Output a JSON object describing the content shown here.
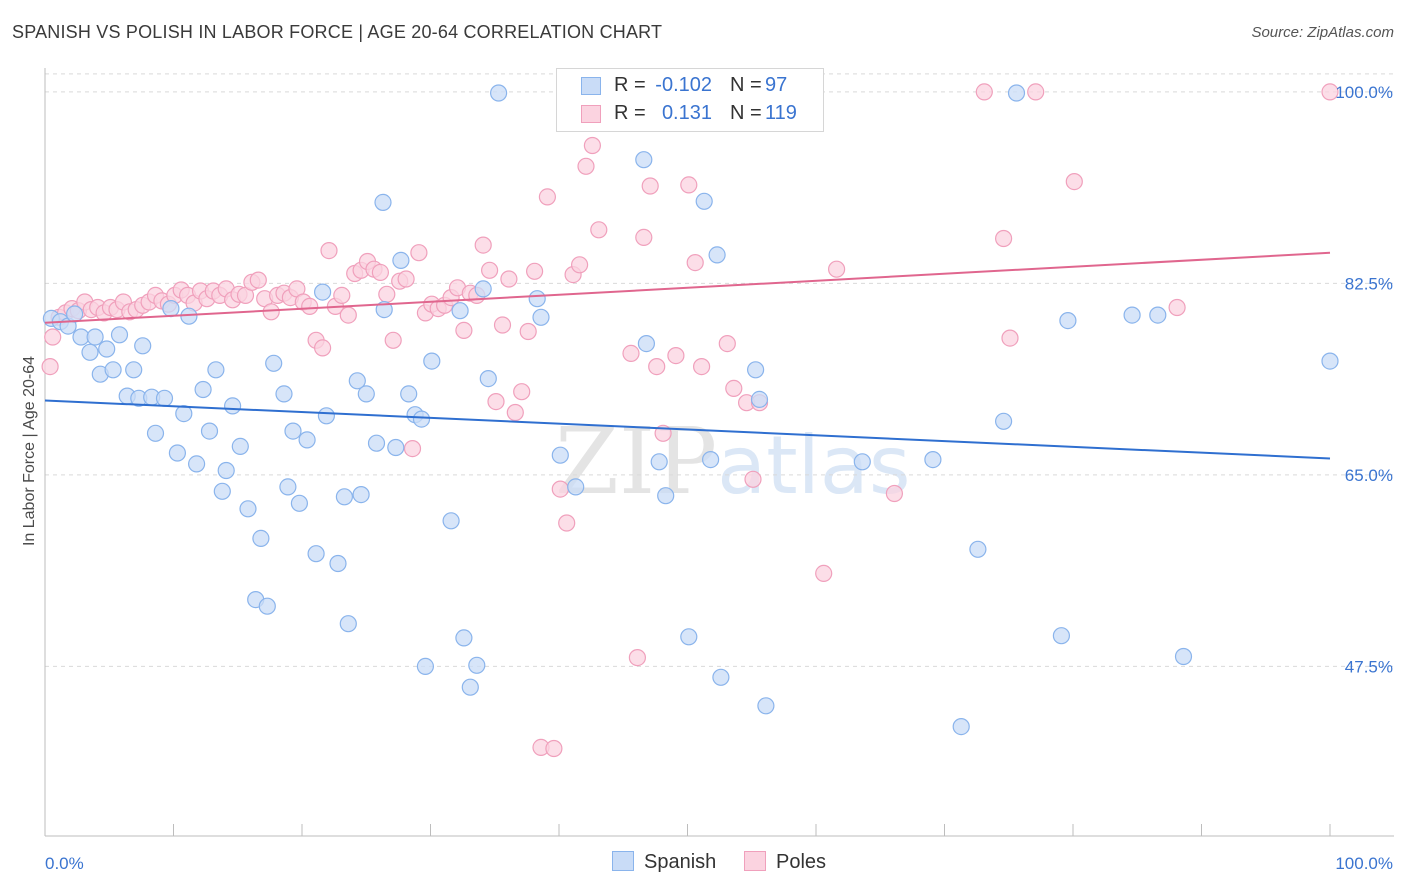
{
  "title": "SPANISH VS POLISH IN LABOR FORCE | AGE 20-64 CORRELATION CHART",
  "source": "Source: ZipAtlas.com",
  "watermark": {
    "part1": "ZIP",
    "part2": "atlas"
  },
  "legend": {
    "rows": [
      {
        "r_label": "R =",
        "r_value": "-0.102",
        "n_label": "N =",
        "n_value": "97",
        "color": "#8ab4ec",
        "fill": "#c9dcf7"
      },
      {
        "r_label": "R =",
        "r_value": "0.131",
        "n_label": "N =",
        "n_value": "119",
        "color": "#f0a0bc",
        "fill": "#fbd3e0"
      }
    ]
  },
  "bottom_legend": [
    {
      "label": "Spanish",
      "color": "#8ab4ec",
      "fill": "#c9dcf7"
    },
    {
      "label": "Poles",
      "color": "#f0a0bc",
      "fill": "#fbd3e0"
    }
  ],
  "chart_data": {
    "type": "scatter",
    "title": "SPANISH VS POLISH IN LABOR FORCE | AGE 20-64 CORRELATION CHART",
    "xlabel": "",
    "ylabel": "In Labor Force | Age 20-64",
    "xlim": [
      0,
      100
    ],
    "ylim": [
      32,
      102
    ],
    "x_tick_labels": [
      {
        "value": 0,
        "label": "0.0%"
      },
      {
        "value": 100,
        "label": "100.0%"
      }
    ],
    "y_tick_labels": [
      {
        "value": 100,
        "label": "100.0%"
      },
      {
        "value": 82.5,
        "label": "82.5%"
      },
      {
        "value": 65,
        "label": "65.0%"
      },
      {
        "value": 47.5,
        "label": "47.5%"
      }
    ],
    "grid": true,
    "series": [
      {
        "name": "Spanish",
        "color": "#8ab4ec",
        "fill": "#c9dcf7",
        "line_color": "#2f6fd0",
        "trend": [
          [
            0,
            71.8
          ],
          [
            100,
            66.5
          ]
        ],
        "points": [
          [
            0.5,
            79.3
          ],
          [
            1.2,
            79.0
          ],
          [
            1.8,
            78.6
          ],
          [
            2.3,
            79.7
          ],
          [
            2.8,
            77.6
          ],
          [
            3.5,
            76.2
          ],
          [
            3.9,
            77.6
          ],
          [
            4.3,
            74.2
          ],
          [
            4.8,
            76.5
          ],
          [
            5.3,
            74.6
          ],
          [
            5.8,
            77.8
          ],
          [
            6.4,
            72.2
          ],
          [
            6.9,
            74.6
          ],
          [
            7.3,
            72.0
          ],
          [
            7.6,
            76.8
          ],
          [
            8.3,
            72.1
          ],
          [
            8.6,
            68.8
          ],
          [
            9.3,
            72.0
          ],
          [
            9.8,
            80.2
          ],
          [
            10.3,
            67.0
          ],
          [
            10.8,
            70.6
          ],
          [
            11.2,
            79.5
          ],
          [
            11.8,
            66.0
          ],
          [
            12.3,
            72.8
          ],
          [
            12.8,
            69.0
          ],
          [
            13.3,
            74.6
          ],
          [
            13.8,
            63.5
          ],
          [
            14.1,
            65.4
          ],
          [
            14.6,
            71.3
          ],
          [
            15.2,
            67.6
          ],
          [
            15.8,
            61.9
          ],
          [
            16.8,
            59.2
          ],
          [
            16.4,
            53.6
          ],
          [
            17.3,
            53.0
          ],
          [
            17.8,
            75.2
          ],
          [
            18.6,
            72.4
          ],
          [
            18.9,
            63.9
          ],
          [
            19.3,
            69.0
          ],
          [
            19.8,
            62.4
          ],
          [
            20.4,
            68.2
          ],
          [
            21.1,
            57.8
          ],
          [
            21.6,
            81.7
          ],
          [
            21.9,
            70.4
          ],
          [
            22.8,
            56.9
          ],
          [
            23.3,
            63.0
          ],
          [
            23.6,
            51.4
          ],
          [
            24.3,
            73.6
          ],
          [
            24.6,
            63.2
          ],
          [
            25.0,
            72.4
          ],
          [
            25.8,
            67.9
          ],
          [
            26.4,
            80.1
          ],
          [
            26.3,
            89.9
          ],
          [
            27.3,
            67.5
          ],
          [
            27.7,
            84.6
          ],
          [
            28.3,
            72.4
          ],
          [
            28.8,
            70.5
          ],
          [
            29.3,
            70.1
          ],
          [
            29.6,
            47.5
          ],
          [
            30.1,
            75.4
          ],
          [
            31.6,
            60.8
          ],
          [
            32.3,
            80.0
          ],
          [
            32.6,
            50.1
          ],
          [
            33.1,
            45.6
          ],
          [
            33.6,
            47.6
          ],
          [
            34.1,
            82.0
          ],
          [
            34.5,
            73.8
          ],
          [
            35.3,
            99.9
          ],
          [
            38.3,
            81.1
          ],
          [
            38.6,
            79.4
          ],
          [
            40.1,
            66.8
          ],
          [
            41.3,
            63.9
          ],
          [
            46.6,
            93.8
          ],
          [
            46.8,
            77.0
          ],
          [
            47.8,
            66.2
          ],
          [
            48.3,
            63.1
          ],
          [
            50.1,
            50.2
          ],
          [
            51.3,
            90.0
          ],
          [
            51.8,
            66.4
          ],
          [
            52.3,
            85.1
          ],
          [
            52.6,
            46.5
          ],
          [
            55.3,
            74.6
          ],
          [
            55.6,
            71.9
          ],
          [
            56.1,
            43.9
          ],
          [
            63.6,
            66.2
          ],
          [
            69.1,
            66.4
          ],
          [
            71.3,
            42.0
          ],
          [
            72.6,
            58.2
          ],
          [
            74.6,
            69.9
          ],
          [
            75.6,
            99.9
          ],
          [
            79.1,
            50.3
          ],
          [
            79.6,
            79.1
          ],
          [
            84.6,
            79.6
          ],
          [
            86.6,
            79.6
          ],
          [
            88.6,
            48.4
          ],
          [
            100.0,
            75.4
          ]
        ]
      },
      {
        "name": "Poles",
        "color": "#f0a0bc",
        "fill": "#fbd3e0",
        "line_color": "#e0668e",
        "trend": [
          [
            0,
            78.9
          ],
          [
            100,
            85.3
          ]
        ],
        "points": [
          [
            0.4,
            74.9
          ],
          [
            0.6,
            77.6
          ],
          [
            1.1,
            79.4
          ],
          [
            1.6,
            79.8
          ],
          [
            2.1,
            80.2
          ],
          [
            2.6,
            80.0
          ],
          [
            3.1,
            80.8
          ],
          [
            3.6,
            80.1
          ],
          [
            4.1,
            80.3
          ],
          [
            4.6,
            79.8
          ],
          [
            5.1,
            80.3
          ],
          [
            5.6,
            80.1
          ],
          [
            6.1,
            80.8
          ],
          [
            6.6,
            79.9
          ],
          [
            7.1,
            80.1
          ],
          [
            7.6,
            80.5
          ],
          [
            8.1,
            80.8
          ],
          [
            8.6,
            81.4
          ],
          [
            9.1,
            80.9
          ],
          [
            9.6,
            80.6
          ],
          [
            10.1,
            81.4
          ],
          [
            10.6,
            81.9
          ],
          [
            11.1,
            81.4
          ],
          [
            11.6,
            80.7
          ],
          [
            12.1,
            81.8
          ],
          [
            12.6,
            81.1
          ],
          [
            13.1,
            81.8
          ],
          [
            13.6,
            81.4
          ],
          [
            14.1,
            82.0
          ],
          [
            14.6,
            81.0
          ],
          [
            15.1,
            81.5
          ],
          [
            15.6,
            81.4
          ],
          [
            16.1,
            82.6
          ],
          [
            16.6,
            82.8
          ],
          [
            17.1,
            81.1
          ],
          [
            17.6,
            79.9
          ],
          [
            18.1,
            81.4
          ],
          [
            18.6,
            81.6
          ],
          [
            19.1,
            81.2
          ],
          [
            19.6,
            82.0
          ],
          [
            20.1,
            80.8
          ],
          [
            20.6,
            80.4
          ],
          [
            21.1,
            77.3
          ],
          [
            21.6,
            76.6
          ],
          [
            22.1,
            85.5
          ],
          [
            22.6,
            80.4
          ],
          [
            23.1,
            81.4
          ],
          [
            23.6,
            79.6
          ],
          [
            24.1,
            83.4
          ],
          [
            24.6,
            83.7
          ],
          [
            25.1,
            84.5
          ],
          [
            25.6,
            83.8
          ],
          [
            26.1,
            83.5
          ],
          [
            26.6,
            81.5
          ],
          [
            27.1,
            77.3
          ],
          [
            27.6,
            82.7
          ],
          [
            28.1,
            82.9
          ],
          [
            28.6,
            67.4
          ],
          [
            29.1,
            85.3
          ],
          [
            29.6,
            79.8
          ],
          [
            30.1,
            80.6
          ],
          [
            30.6,
            80.2
          ],
          [
            31.1,
            80.5
          ],
          [
            31.6,
            81.2
          ],
          [
            32.1,
            82.1
          ],
          [
            32.6,
            78.2
          ],
          [
            33.1,
            81.6
          ],
          [
            33.6,
            81.4
          ],
          [
            34.1,
            86.0
          ],
          [
            34.6,
            83.7
          ],
          [
            35.1,
            71.7
          ],
          [
            35.6,
            78.7
          ],
          [
            36.1,
            82.9
          ],
          [
            36.6,
            70.7
          ],
          [
            37.1,
            72.6
          ],
          [
            37.6,
            78.1
          ],
          [
            38.1,
            83.6
          ],
          [
            38.6,
            40.1
          ],
          [
            39.1,
            90.4
          ],
          [
            39.6,
            40.0
          ],
          [
            40.1,
            63.7
          ],
          [
            40.6,
            60.6
          ],
          [
            41.1,
            83.3
          ],
          [
            41.6,
            84.2
          ],
          [
            42.1,
            93.2
          ],
          [
            42.6,
            95.1
          ],
          [
            43.1,
            87.4
          ],
          [
            43.6,
            99.9
          ],
          [
            44.1,
            98.9
          ],
          [
            45.1,
            98.3
          ],
          [
            45.6,
            76.1
          ],
          [
            46.1,
            48.3
          ],
          [
            46.6,
            86.7
          ],
          [
            47.1,
            91.4
          ],
          [
            47.6,
            74.9
          ],
          [
            48.1,
            68.8
          ],
          [
            49.1,
            75.9
          ],
          [
            50.1,
            91.5
          ],
          [
            50.6,
            84.4
          ],
          [
            51.1,
            74.9
          ],
          [
            51.6,
            100.0
          ],
          [
            53.1,
            77.0
          ],
          [
            53.6,
            72.9
          ],
          [
            54.6,
            71.6
          ],
          [
            55.1,
            64.6
          ],
          [
            55.6,
            71.6
          ],
          [
            56.1,
            97.8
          ],
          [
            60.6,
            56.0
          ],
          [
            61.6,
            83.8
          ],
          [
            66.1,
            63.3
          ],
          [
            73.1,
            100.0
          ],
          [
            74.6,
            86.6
          ],
          [
            75.1,
            77.5
          ],
          [
            77.1,
            100.0
          ],
          [
            80.1,
            91.8
          ],
          [
            88.1,
            80.3
          ],
          [
            100.0,
            100.0
          ]
        ]
      }
    ]
  }
}
